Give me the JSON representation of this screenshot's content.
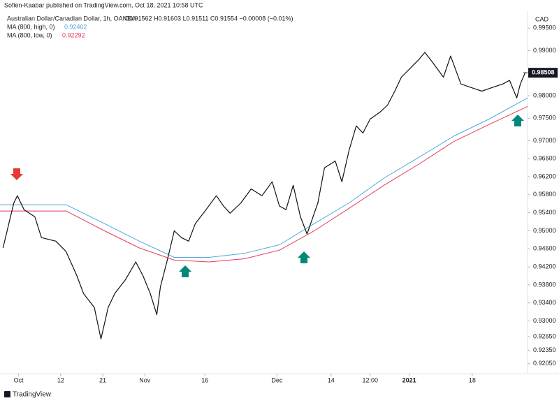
{
  "chart_data": {
    "type": "line",
    "header": "Sofien-Kaabar published on TradingView.com, Oct 18, 2021 10:58 UTC",
    "currency": "CAD",
    "footer": "TradingView",
    "info": "O0.91562 H0.91603 L0.91511 C0.91554 −0.00008 (−0.01%)",
    "last_price": {
      "value": 0.98508,
      "label": "0.98508"
    },
    "xlim": [
      -3.1,
      84.7
    ],
    "ylim": [
      0.9183,
      0.9989
    ],
    "xticks": [
      {
        "value": 0,
        "label": "Oct"
      },
      {
        "value": 7,
        "label": "12"
      },
      {
        "value": 14,
        "label": "21"
      },
      {
        "value": 21,
        "label": "Nov"
      },
      {
        "value": 31,
        "label": "16"
      },
      {
        "value": 43,
        "label": "Dec"
      },
      {
        "value": 52,
        "label": "14"
      },
      {
        "value": 58.5,
        "label": "12:00"
      },
      {
        "value": 65,
        "label": "2021",
        "bold": true
      },
      {
        "value": 75.5,
        "label": "18"
      }
    ],
    "yticks": [
      {
        "value": 0.995,
        "label": "0.99500"
      },
      {
        "value": 0.99,
        "label": "0.99000"
      },
      {
        "value": 0.98,
        "label": "0.98000"
      },
      {
        "value": 0.975,
        "label": "0.97500"
      },
      {
        "value": 0.97,
        "label": "0.97000"
      },
      {
        "value": 0.966,
        "label": "0.96600"
      },
      {
        "value": 0.962,
        "label": "0.96200"
      },
      {
        "value": 0.958,
        "label": "0.95800"
      },
      {
        "value": 0.954,
        "label": "0.95400"
      },
      {
        "value": 0.95,
        "label": "0.95000"
      },
      {
        "value": 0.946,
        "label": "0.94600"
      },
      {
        "value": 0.942,
        "label": "0.94200"
      },
      {
        "value": 0.938,
        "label": "0.93800"
      },
      {
        "value": 0.934,
        "label": "0.93400"
      },
      {
        "value": 0.93,
        "label": "0.93000"
      },
      {
        "value": 0.9265,
        "label": "0.92650"
      },
      {
        "value": 0.9235,
        "label": "0.92350"
      },
      {
        "value": 0.9205,
        "label": "0.92050"
      }
    ],
    "grid": false,
    "series": [
      {
        "name": "Australian Dollar/Canadian Dollar, 1h, OANDA",
        "color": "#111111",
        "x": [
          -2.6,
          -0.8,
          -0.2,
          0.9,
          2.7,
          3.8,
          6.2,
          7.9,
          9.7,
          10.8,
          12.6,
          13.7,
          14.9,
          16.0,
          17.8,
          19.5,
          20.7,
          21.9,
          23.0,
          23.6,
          24.8,
          25.9,
          27.1,
          28.3,
          29.4,
          31.2,
          32.9,
          34.1,
          35.2,
          37.0,
          38.7,
          40.5,
          42.2,
          43.4,
          44.5,
          45.7,
          46.9,
          48.0,
          48.6,
          49.8,
          50.9,
          52.7,
          53.8,
          55.0,
          56.2,
          57.3,
          58.5,
          60.2,
          61.4,
          62.6,
          63.7,
          64.9,
          66.6,
          67.6,
          69.0,
          70.7,
          71.9,
          73.6,
          75.3,
          77.1,
          78.8,
          80.6,
          81.7,
          82.9,
          83.5,
          84.3
        ],
        "values": [
          0.9462,
          0.9562,
          0.9578,
          0.9547,
          0.9531,
          0.9485,
          0.9477,
          0.9454,
          0.94,
          0.9361,
          0.933,
          0.926,
          0.933,
          0.9361,
          0.9392,
          0.9431,
          0.94,
          0.9361,
          0.9314,
          0.9376,
          0.9438,
          0.95,
          0.9485,
          0.9477,
          0.9516,
          0.9547,
          0.9578,
          0.9555,
          0.9539,
          0.9562,
          0.9593,
          0.9578,
          0.9609,
          0.9555,
          0.9547,
          0.9601,
          0.9531,
          0.9493,
          0.9516,
          0.9562,
          0.964,
          0.9655,
          0.9609,
          0.9679,
          0.9733,
          0.9717,
          0.9748,
          0.9764,
          0.9779,
          0.981,
          0.9841,
          0.9857,
          0.988,
          0.9896,
          0.9872,
          0.9841,
          0.9888,
          0.9826,
          0.9818,
          0.981,
          0.9818,
          0.9826,
          0.9834,
          0.9795,
          0.9826,
          0.9851
        ]
      },
      {
        "name": "MA (800, high, 0)",
        "legend_value": "0.92402",
        "color": "#4fa8dc",
        "x": [
          -3.1,
          7.9,
          14.3,
          20.1,
          25.9,
          31.7,
          37.6,
          43.4,
          49.2,
          55.0,
          60.8,
          66.6,
          72.4,
          78.3,
          84.7
        ],
        "values": [
          0.9558,
          0.9558,
          0.9516,
          0.9477,
          0.9441,
          0.9441,
          0.945,
          0.9469,
          0.9516,
          0.9562,
          0.9617,
          0.9663,
          0.971,
          0.9748,
          0.9795
        ]
      },
      {
        "name": "MA (800, low, 0)",
        "legend_value": "0.92292",
        "color": "#e8395b",
        "x": [
          -3.1,
          7.9,
          14.3,
          20.1,
          25.9,
          31.7,
          37.6,
          43.4,
          49.2,
          55.0,
          60.8,
          66.6,
          72.4,
          78.3,
          84.7
        ],
        "values": [
          0.9544,
          0.9544,
          0.95,
          0.9462,
          0.9435,
          0.9431,
          0.9438,
          0.9457,
          0.95,
          0.955,
          0.9601,
          0.9648,
          0.9698,
          0.9736,
          0.9776
        ]
      }
    ]
  }
}
